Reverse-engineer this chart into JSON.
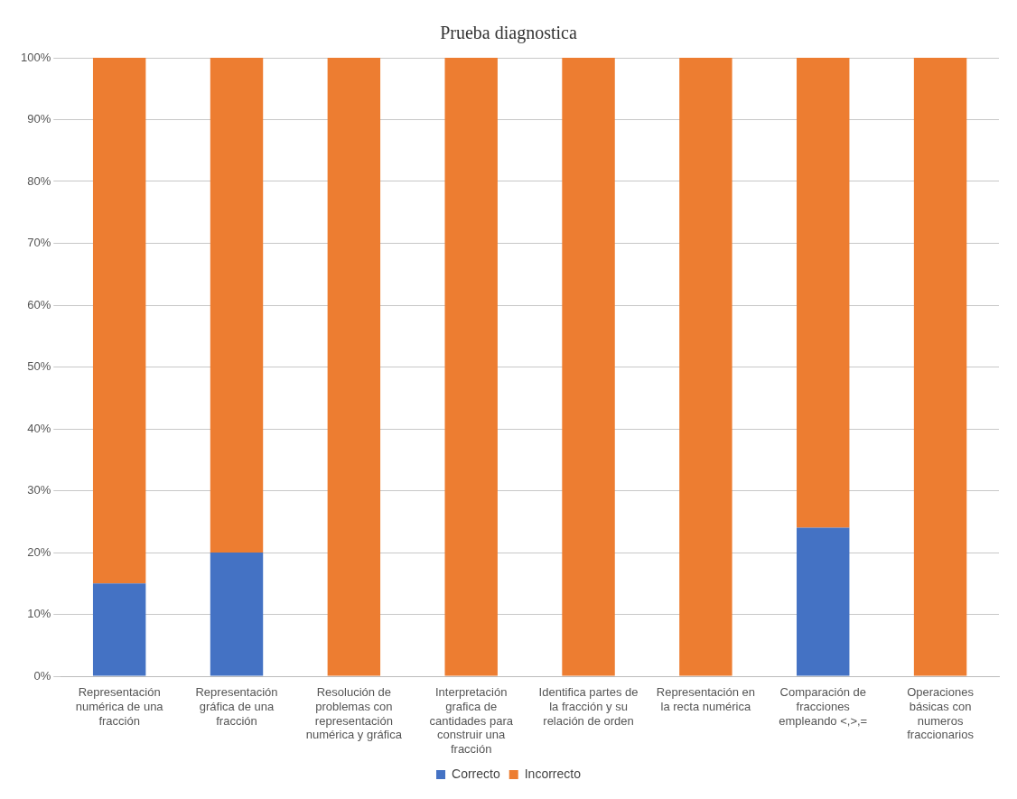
{
  "chart_data": {
    "type": "bar",
    "title": "Prueba diagnostica",
    "stacked": true,
    "categories": [
      "Representación numérica de una fracción",
      "Representación gráfica de una fracción",
      "Resolución de problemas con representación numérica y gráfica",
      "Interpretación grafica de cantidades para construir una fracción",
      "Identifica partes de la fracción y su relación de orden",
      "Representación en la recta numérica",
      "Comparación de fracciones empleando <,>,=",
      "Operaciones básicas con numeros fraccionarios"
    ],
    "series": [
      {
        "name": "Correcto",
        "color": "#4472c4",
        "values": [
          15,
          20,
          0,
          0,
          0,
          0,
          24,
          0
        ]
      },
      {
        "name": "Incorrecto",
        "color": "#ed7d31",
        "values": [
          85,
          80,
          100,
          100,
          100,
          100,
          76,
          100
        ]
      }
    ],
    "ylim": [
      0,
      100
    ],
    "yticks": [
      {
        "value": 0,
        "label": "0%"
      },
      {
        "value": 10,
        "label": "10%"
      },
      {
        "value": 20,
        "label": "20%"
      },
      {
        "value": 30,
        "label": "30%"
      },
      {
        "value": 40,
        "label": "40%"
      },
      {
        "value": 50,
        "label": "50%"
      },
      {
        "value": 60,
        "label": "60%"
      },
      {
        "value": 70,
        "label": "70%"
      },
      {
        "value": 80,
        "label": "80%"
      },
      {
        "value": 90,
        "label": "90%"
      },
      {
        "value": 100,
        "label": "100%"
      }
    ],
    "grid": "y",
    "legend": "bottom"
  }
}
